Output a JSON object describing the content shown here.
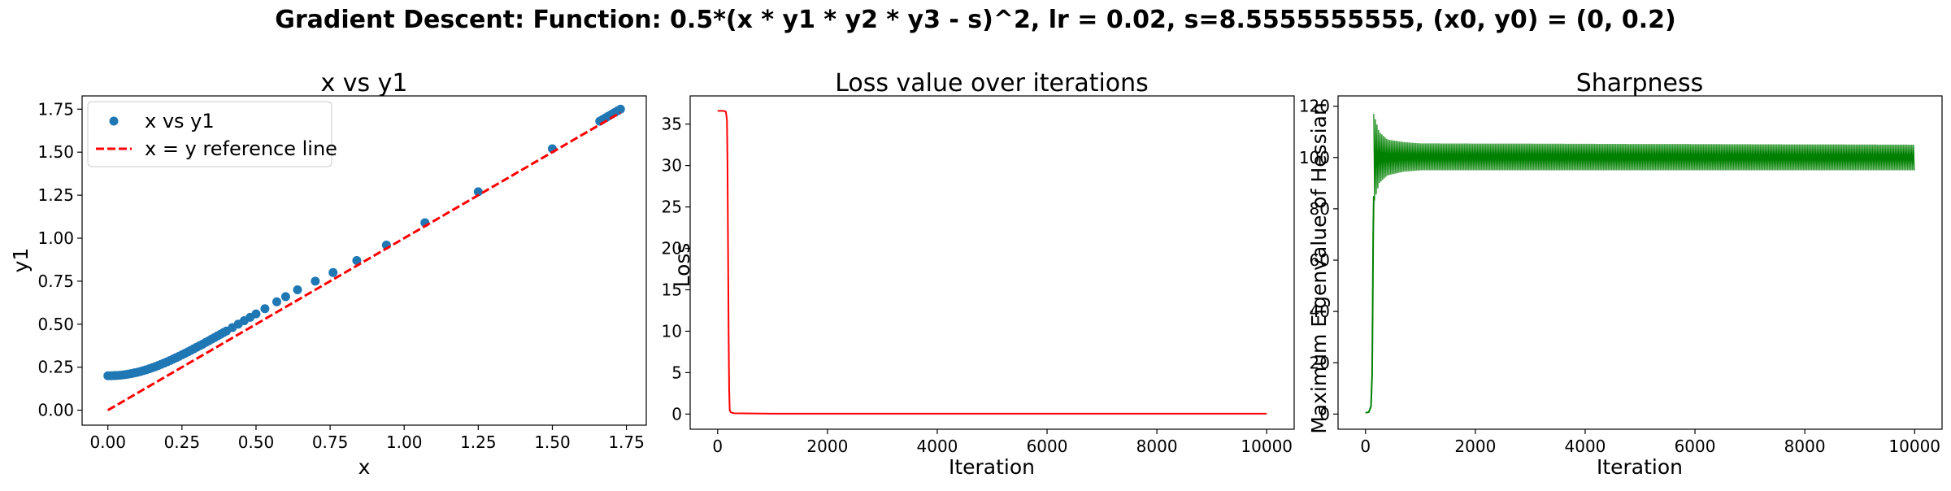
{
  "suptitle": "Gradient Descent: Function: 0.5*(x * y1 * y2 * y3 - s)^2, lr = 0.02, s=8.5555555555, (x0, y0) = (0, 0.2)",
  "chart_data": [
    {
      "type": "scatter",
      "title": "x vs y1",
      "xlabel": "x",
      "ylabel": "y1",
      "xlim": [
        -0.087,
        1.817
      ],
      "ylim": [
        -0.087,
        1.827
      ],
      "xticks": [
        0.0,
        0.25,
        0.5,
        0.75,
        1.0,
        1.25,
        1.5,
        1.75
      ],
      "xtick_labels": [
        "0.00",
        "0.25",
        "0.50",
        "0.75",
        "1.00",
        "1.25",
        "1.50",
        "1.75"
      ],
      "yticks": [
        0.0,
        0.25,
        0.5,
        0.75,
        1.0,
        1.25,
        1.5,
        1.75
      ],
      "ytick_labels": [
        "0.00",
        "0.25",
        "0.50",
        "0.75",
        "1.00",
        "1.25",
        "1.50",
        "1.75"
      ],
      "legend_position": "top-left",
      "series": [
        {
          "name": "x vs y1",
          "kind": "scatter",
          "color": "#1f77b4",
          "x": [
            0.0,
            0.01,
            0.02,
            0.03,
            0.04,
            0.05,
            0.06,
            0.07,
            0.08,
            0.09,
            0.1,
            0.11,
            0.12,
            0.13,
            0.14,
            0.15,
            0.16,
            0.17,
            0.18,
            0.19,
            0.2,
            0.21,
            0.22,
            0.23,
            0.24,
            0.25,
            0.26,
            0.27,
            0.28,
            0.29,
            0.3,
            0.31,
            0.32,
            0.33,
            0.34,
            0.35,
            0.36,
            0.37,
            0.38,
            0.39,
            0.4,
            0.42,
            0.44,
            0.46,
            0.48,
            0.5,
            0.53,
            0.57,
            0.6,
            0.64,
            0.7,
            0.76,
            0.84,
            0.94,
            1.07,
            1.25,
            1.5,
            1.66,
            1.67,
            1.68,
            1.69,
            1.7,
            1.71,
            1.72,
            1.73
          ],
          "y": [
            0.2,
            0.2,
            0.201,
            0.202,
            0.203,
            0.205,
            0.207,
            0.21,
            0.213,
            0.217,
            0.221,
            0.225,
            0.23,
            0.235,
            0.241,
            0.247,
            0.253,
            0.26,
            0.267,
            0.274,
            0.281,
            0.289,
            0.297,
            0.305,
            0.313,
            0.322,
            0.33,
            0.339,
            0.348,
            0.357,
            0.366,
            0.375,
            0.384,
            0.394,
            0.403,
            0.413,
            0.422,
            0.432,
            0.441,
            0.451,
            0.46,
            0.48,
            0.5,
            0.52,
            0.54,
            0.56,
            0.59,
            0.63,
            0.66,
            0.7,
            0.75,
            0.8,
            0.87,
            0.96,
            1.09,
            1.27,
            1.52,
            1.68,
            1.69,
            1.7,
            1.71,
            1.72,
            1.73,
            1.74,
            1.75
          ]
        },
        {
          "name": "x = y reference line",
          "kind": "line",
          "color": "#ff0000",
          "dashed": true,
          "x": [
            0.0,
            1.73
          ],
          "y": [
            0.0,
            1.73
          ]
        }
      ]
    },
    {
      "type": "line",
      "title": "Loss value over iterations",
      "xlabel": "Iteration",
      "ylabel": "Loss",
      "xlim": [
        -500,
        10500
      ],
      "ylim": [
        -1.83,
        38.4
      ],
      "xticks": [
        0,
        2000,
        4000,
        6000,
        8000,
        10000
      ],
      "xtick_labels": [
        "0",
        "2000",
        "4000",
        "6000",
        "8000",
        "10000"
      ],
      "yticks": [
        0,
        5,
        10,
        15,
        20,
        25,
        30,
        35
      ],
      "ytick_labels": [
        "0",
        "5",
        "10",
        "15",
        "20",
        "25",
        "30",
        "35"
      ],
      "series": [
        {
          "kind": "line",
          "color": "#ff0000",
          "x": [
            0,
            100,
            150,
            170,
            180,
            190,
            200,
            210,
            220,
            240,
            300,
            1000,
            10000
          ],
          "y": [
            36.6,
            36.6,
            36.5,
            35.5,
            30.0,
            20.0,
            10.0,
            3.0,
            0.5,
            0.2,
            0.1,
            0.05,
            0.05
          ]
        }
      ]
    },
    {
      "type": "line",
      "title": "Sharpness",
      "xlabel": "Iteration",
      "ylabel": "Maximum Eigenvalue of Hessian",
      "xlim": [
        -500,
        10500
      ],
      "ylim": [
        -5.9,
        124.0
      ],
      "xticks": [
        0,
        2000,
        4000,
        6000,
        8000,
        10000
      ],
      "xtick_labels": [
        "0",
        "2000",
        "4000",
        "6000",
        "8000",
        "10000"
      ],
      "yticks": [
        0,
        20,
        40,
        60,
        80,
        100,
        120
      ],
      "ytick_labels": [
        "0",
        "20",
        "40",
        "60",
        "80",
        "100",
        "120"
      ],
      "series": [
        {
          "kind": "line",
          "color": "#008000",
          "x": [
            0,
            60,
            100,
            120,
            130,
            140,
            150,
            10000
          ],
          "y": [
            0.5,
            0.8,
            3.0,
            15.0,
            40.0,
            70.0,
            85.0,
            100.0
          ],
          "oscillation": {
            "x_start": 150,
            "x_end": 10000,
            "envelope_upper": [
              [
                150,
                117
              ],
              [
                250,
                110
              ],
              [
                400,
                107
              ],
              [
                700,
                106
              ],
              [
                1000,
                105.5
              ],
              [
                10000,
                105
              ]
            ],
            "envelope_lower": [
              [
                150,
                82
              ],
              [
                250,
                90
              ],
              [
                400,
                93
              ],
              [
                700,
                94.5
              ],
              [
                1000,
                95
              ],
              [
                10000,
                95
              ]
            ]
          }
        }
      ]
    }
  ]
}
